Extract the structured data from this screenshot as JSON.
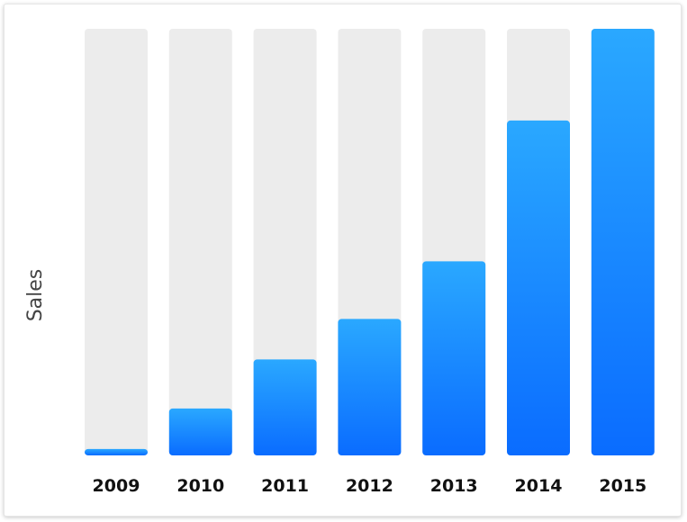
{
  "chart_data": {
    "type": "bar",
    "categories": [
      "2009",
      "2010",
      "2011",
      "2012",
      "2013",
      "2014",
      "2015"
    ],
    "values": [
      1.5,
      11,
      22.5,
      32,
      45.5,
      78.5,
      100
    ],
    "ylim": [
      0,
      100
    ],
    "ylabel": "Sales",
    "xlabel": "",
    "title": "",
    "grid": false,
    "legend": "none",
    "colors": {
      "track": "#ececec",
      "bar_top": "#2aa8ff",
      "bar_bottom": "#0a6cff",
      "tick_text": "#111111",
      "axis_text": "#444444"
    }
  }
}
